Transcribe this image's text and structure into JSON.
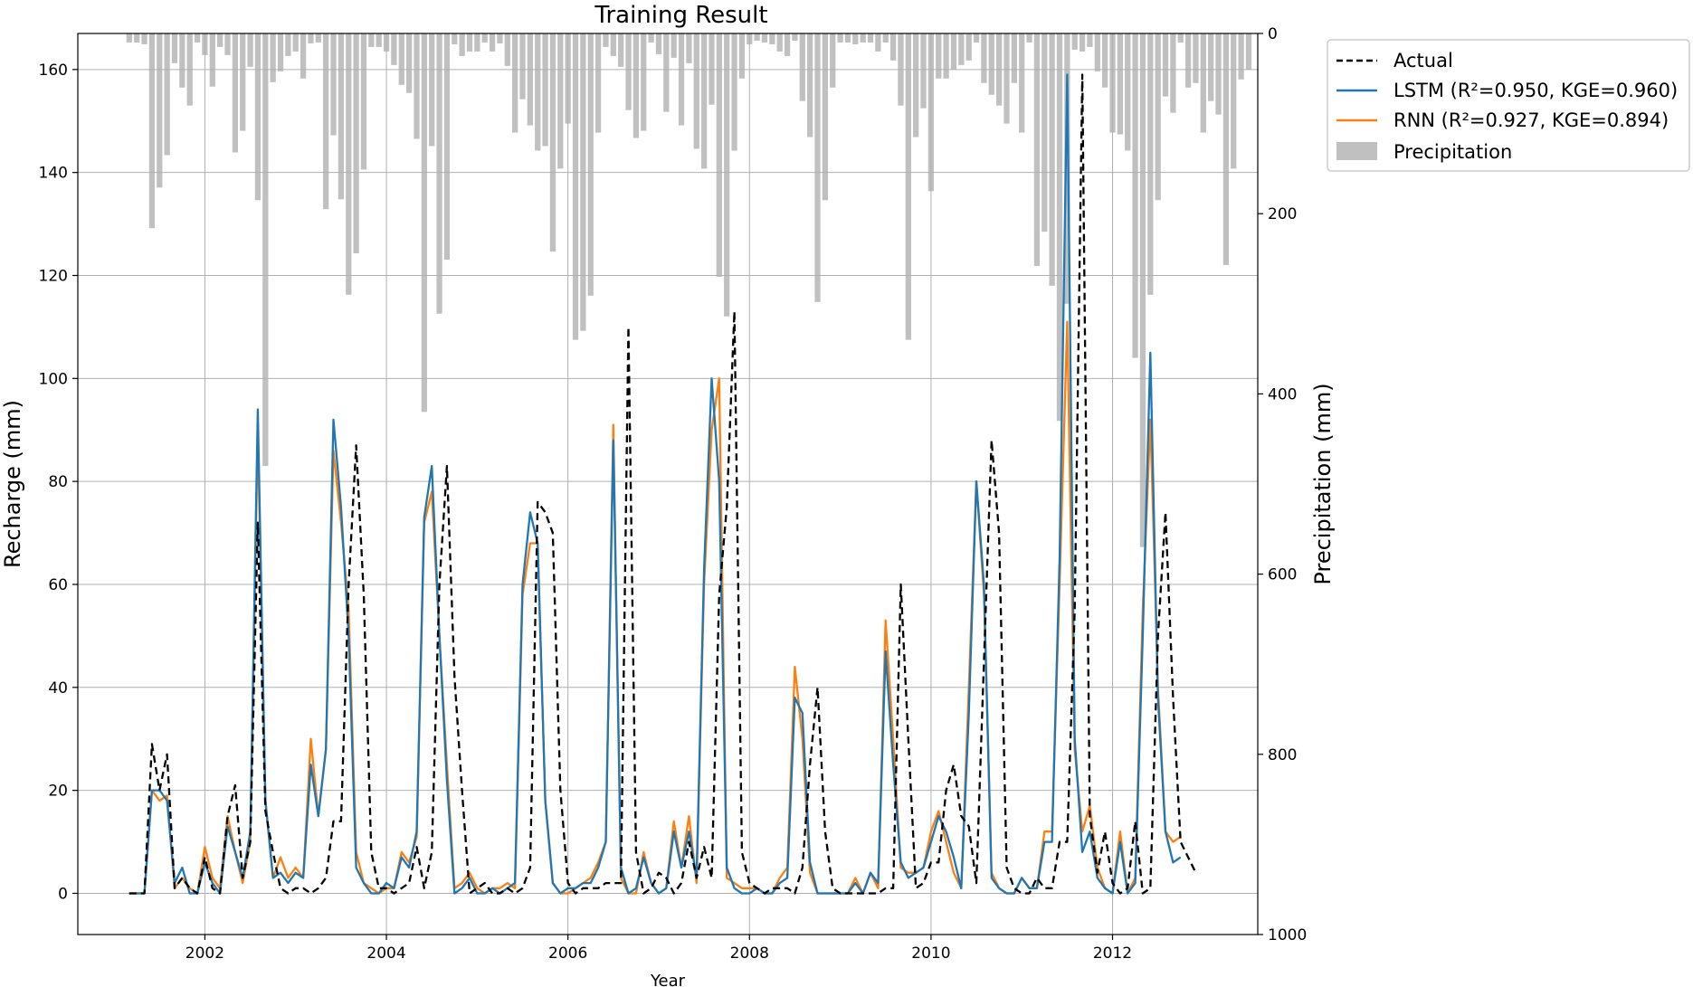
{
  "chart_data": {
    "type": "line",
    "title": "Training Result",
    "xlabel": "Year",
    "ylabel": "Recharge (mm)",
    "y2label": "Precipitation (mm)",
    "xlim": [
      2000.6,
      2013.6
    ],
    "ylim": [
      -8,
      167
    ],
    "y2lim": [
      1000,
      0
    ],
    "y2_inverted": true,
    "x_ticks": [
      2002,
      2004,
      2006,
      2008,
      2010,
      2012
    ],
    "x_tick_labels": [
      "2002",
      "2004",
      "2006",
      "2008",
      "2010",
      "2012"
    ],
    "y_ticks": [
      0,
      20,
      40,
      60,
      80,
      100,
      120,
      140,
      160
    ],
    "y_tick_labels": [
      "0",
      "20",
      "40",
      "60",
      "80",
      "100",
      "120",
      "140",
      "160"
    ],
    "y2_ticks": [
      0,
      200,
      400,
      600,
      800,
      1000
    ],
    "y2_tick_labels": [
      "0",
      "200",
      "400",
      "600",
      "800",
      "1000"
    ],
    "grid": true,
    "legend_position": "outside-top-right",
    "months": {
      "start_year": 2001,
      "start_month": 3,
      "count": 142
    },
    "series": [
      {
        "name": "Actual",
        "kind": "line",
        "style": "dashed",
        "color": "#000000",
        "values": [
          0,
          0,
          0,
          29,
          20,
          27,
          1,
          3,
          1,
          0,
          7,
          1,
          0,
          15,
          21,
          3,
          10,
          72,
          16,
          8,
          1,
          0,
          1,
          1,
          0,
          1,
          3,
          14,
          14,
          60,
          87,
          58,
          8,
          1,
          1,
          0,
          1,
          2,
          9,
          1,
          8,
          60,
          83,
          42,
          20,
          0,
          1,
          2,
          0,
          0,
          1,
          0,
          1,
          5,
          76,
          74,
          70,
          20,
          2,
          0,
          1,
          1,
          1,
          2,
          2,
          2,
          110,
          8,
          0,
          1,
          4,
          3,
          0,
          2,
          10,
          3,
          9,
          3,
          58,
          75,
          113,
          8,
          2,
          1,
          0,
          1,
          1,
          1,
          0,
          5,
          25,
          40,
          12,
          1,
          0,
          0,
          0,
          0,
          0,
          0,
          1,
          1,
          60,
          30,
          1,
          2,
          6,
          6,
          20,
          25,
          15,
          13,
          2,
          45,
          88,
          70,
          5,
          1,
          0,
          0,
          3,
          1,
          1,
          10,
          10,
          55,
          159,
          15,
          4,
          12,
          2,
          0,
          1,
          14,
          0,
          1,
          50,
          74,
          38,
          10,
          7,
          4
        ]
      },
      {
        "name": "LSTM (R²=0.950, KGE=0.960)",
        "kind": "line",
        "style": "solid",
        "color": "#1f77b4",
        "values": [
          0,
          0,
          0,
          20,
          20,
          18,
          2,
          5,
          0,
          0,
          6,
          2,
          0,
          13,
          8,
          3,
          12,
          94,
          18,
          3,
          4,
          2,
          4,
          3,
          25,
          15,
          28,
          92,
          75,
          50,
          5,
          2,
          0,
          0,
          2,
          1,
          7,
          5,
          12,
          73,
          83,
          50,
          22,
          0,
          1,
          3,
          0,
          0,
          1,
          0,
          1,
          2,
          60,
          74,
          68,
          18,
          2,
          0,
          1,
          1,
          2,
          2,
          5,
          10,
          88,
          5,
          0,
          1,
          7,
          2,
          0,
          1,
          12,
          5,
          12,
          3,
          63,
          100,
          80,
          5,
          1,
          0,
          0,
          1,
          0,
          0,
          2,
          3,
          38,
          35,
          6,
          0,
          0,
          0,
          0,
          0,
          2,
          0,
          4,
          2,
          47,
          25,
          6,
          3,
          4,
          5,
          10,
          15,
          12,
          7,
          1,
          35,
          80,
          60,
          3,
          1,
          0,
          0,
          3,
          1,
          1,
          10,
          10,
          65,
          159,
          30,
          8,
          12,
          3,
          1,
          0,
          10,
          0,
          2,
          50,
          105,
          38,
          12,
          6,
          7
        ]
      },
      {
        "name": "RNN (R²=0.927, KGE=0.894)",
        "kind": "line",
        "style": "solid",
        "color": "#ff7f0e",
        "values": [
          0,
          0,
          0,
          20,
          18,
          19,
          1,
          3,
          1,
          0,
          9,
          3,
          1,
          15,
          8,
          2,
          10,
          90,
          18,
          3,
          7,
          3,
          5,
          3,
          30,
          15,
          28,
          86,
          72,
          55,
          8,
          2,
          1,
          0,
          1,
          1,
          8,
          6,
          11,
          72,
          78,
          50,
          25,
          1,
          2,
          4,
          1,
          0,
          1,
          1,
          2,
          1,
          58,
          68,
          68,
          18,
          2,
          0,
          0,
          1,
          2,
          3,
          6,
          10,
          91,
          3,
          0,
          0,
          8,
          2,
          0,
          1,
          14,
          5,
          15,
          2,
          60,
          90,
          100,
          3,
          2,
          1,
          1,
          1,
          0,
          0,
          3,
          5,
          44,
          30,
          4,
          0,
          0,
          0,
          0,
          0,
          3,
          0,
          4,
          1,
          53,
          30,
          5,
          4,
          4,
          5,
          12,
          16,
          10,
          4,
          1,
          40,
          80,
          58,
          4,
          1,
          0,
          0,
          3,
          1,
          1,
          12,
          12,
          60,
          111,
          28,
          12,
          17,
          5,
          1,
          0,
          12,
          0,
          3,
          55,
          92,
          40,
          12,
          10,
          11
        ]
      },
      {
        "name": "Precipitation",
        "kind": "bar",
        "axis": "y2",
        "color": "#c0c0c0",
        "values": [
          10,
          10,
          12,
          216,
          171,
          135,
          33,
          60,
          80,
          10,
          24,
          59,
          15,
          24,
          132,
          108,
          37,
          185,
          480,
          54,
          42,
          25,
          20,
          50,
          11,
          10,
          195,
          113,
          184,
          290,
          244,
          151,
          15,
          15,
          20,
          35,
          57,
          66,
          117,
          420,
          125,
          311,
          251,
          12,
          25,
          20,
          20,
          10,
          20,
          11,
          36,
          110,
          73,
          102,
          130,
          125,
          242,
          150,
          100,
          340,
          330,
          291,
          110,
          15,
          25,
          37,
          85,
          116,
          108,
          10,
          23,
          87,
          27,
          102,
          33,
          128,
          150,
          79,
          270,
          314,
          130,
          50,
          12,
          8,
          10,
          12,
          20,
          25,
          8,
          75,
          115,
          298,
          185,
          60,
          10,
          10,
          12,
          10,
          10,
          20,
          10,
          30,
          80,
          340,
          115,
          83,
          175,
          50,
          50,
          40,
          35,
          30,
          10,
          55,
          68,
          80,
          100,
          55,
          110,
          10,
          258,
          220,
          280,
          430,
          300,
          18,
          20,
          15,
          42,
          60,
          110,
          112,
          130,
          360,
          570,
          290,
          185,
          70,
          88,
          10,
          60,
          55,
          110,
          75,
          90,
          257,
          150,
          51,
          40
        ]
      }
    ]
  }
}
